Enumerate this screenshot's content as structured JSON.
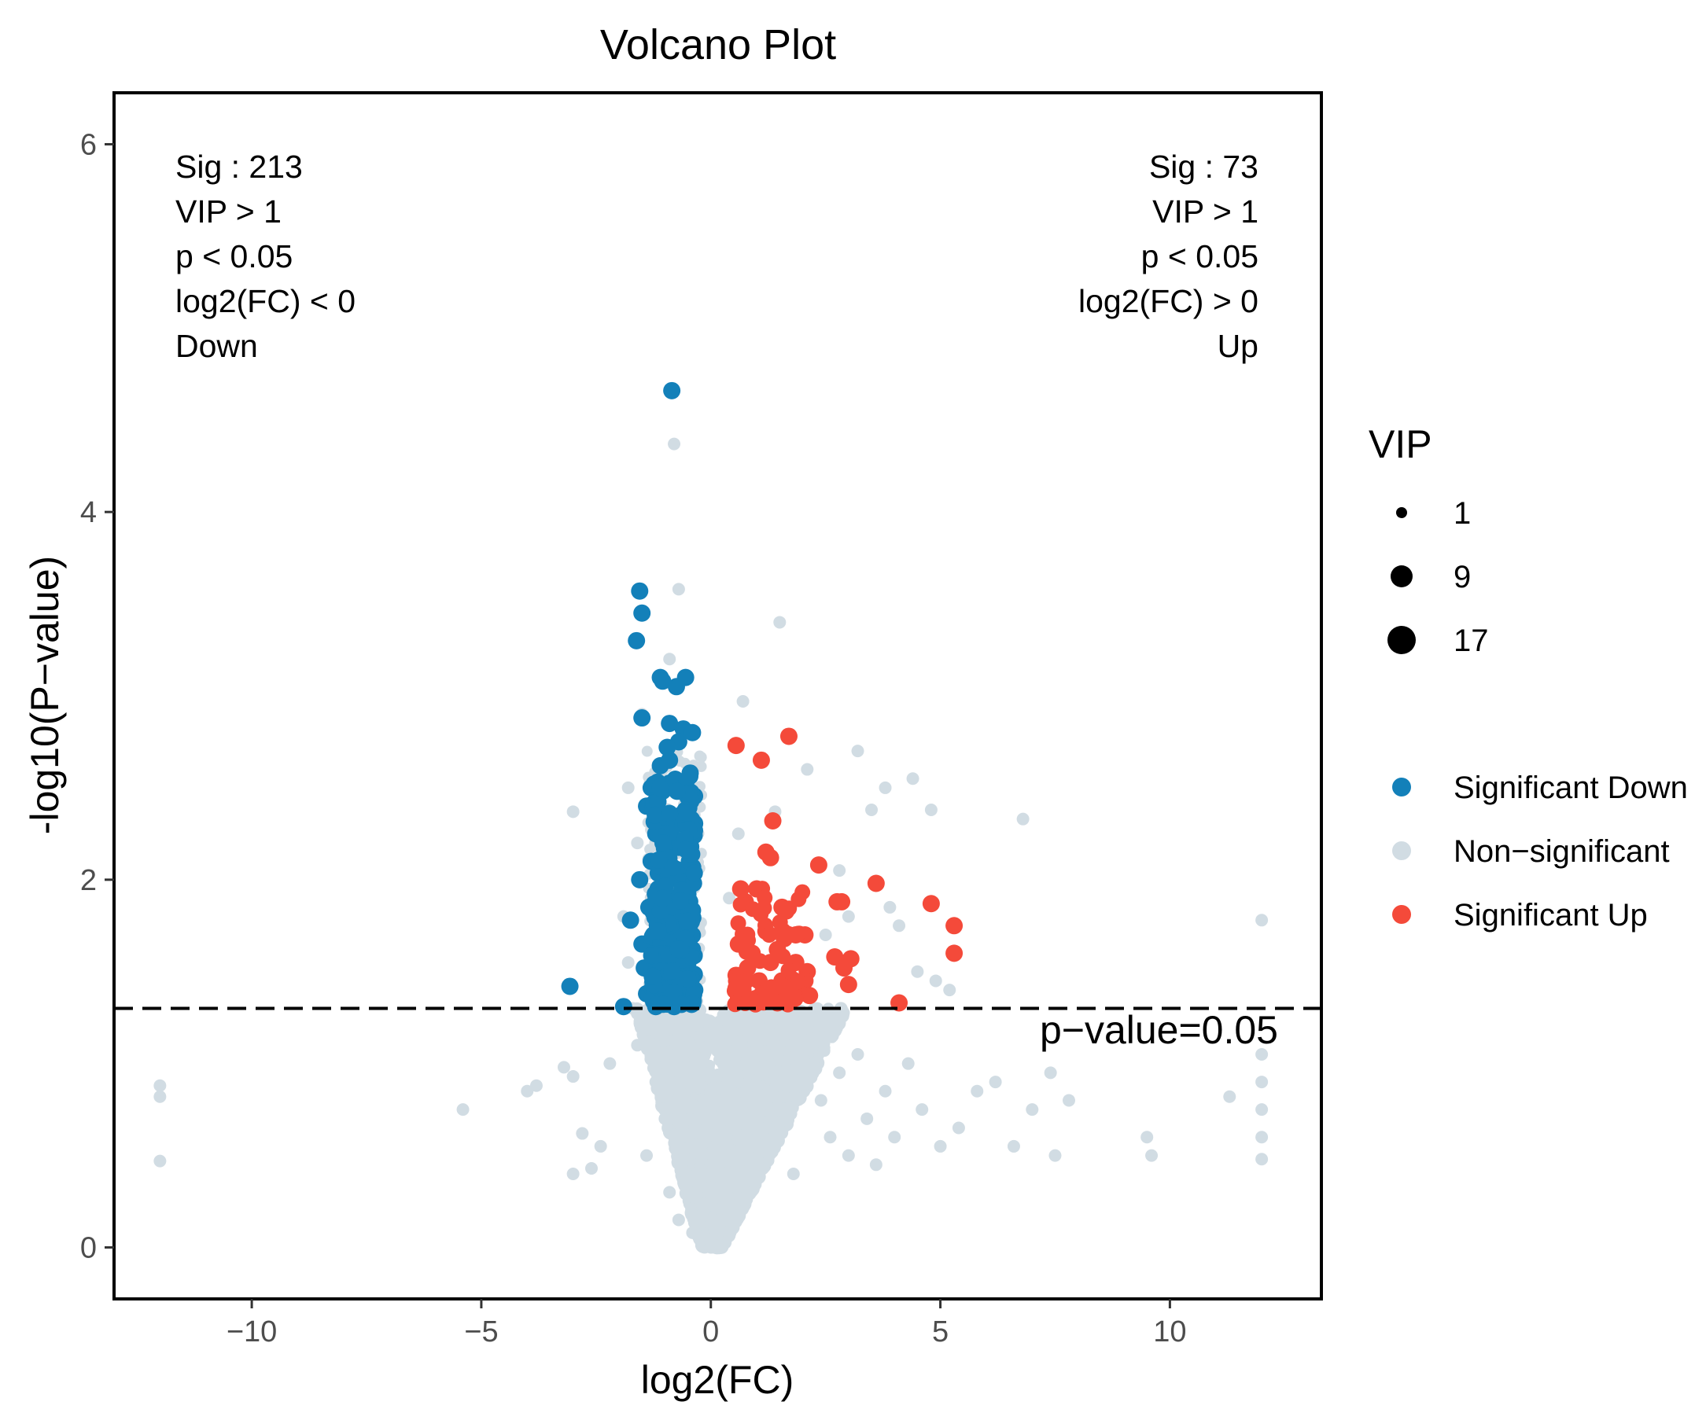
{
  "chart_data": {
    "type": "scatter",
    "title": "Volcano Plot",
    "xlabel": "log2(FC)",
    "ylabel": "-log10(P−value)",
    "xlim": [
      -13,
      13.3
    ],
    "ylim": [
      -0.28,
      6.28
    ],
    "x_ticks": [
      -10,
      -5,
      0,
      5,
      10
    ],
    "x_tick_labels": [
      "−10",
      "−5",
      "0",
      "5",
      "10"
    ],
    "y_ticks": [
      0,
      2,
      4,
      6
    ],
    "y_tick_labels": [
      "0",
      "2",
      "4",
      "6"
    ],
    "grid": false,
    "threshold": {
      "y": 1.3,
      "label": "p−value=0.05",
      "style": "dashed"
    },
    "annotations": {
      "down": [
        "Sig : 213",
        "VIP > 1",
        "p < 0.05",
        "log2(FC) < 0",
        "Down"
      ],
      "up": [
        "Sig : 73",
        "VIP > 1",
        "p < 0.05",
        "log2(FC) > 0",
        "Up"
      ]
    },
    "size_legend": {
      "title": "VIP",
      "entries": [
        {
          "label": "1",
          "value": 1
        },
        {
          "label": "9",
          "value": 9
        },
        {
          "label": "17",
          "value": 17
        }
      ]
    },
    "color_legend": [
      {
        "name": "Significant Down",
        "color": "#1380B9"
      },
      {
        "name": "Non−significant",
        "color": "#D1DCE3"
      },
      {
        "name": "Significant Up",
        "color": "#F44A3A"
      }
    ],
    "significant_counts": {
      "down": 213,
      "up": 73
    },
    "series": [
      {
        "name": "Non−significant",
        "color": "#D1DCE3",
        "points": [
          [
            -12.0,
            0.88
          ],
          [
            -12.0,
            0.82
          ],
          [
            -12.0,
            0.47
          ],
          [
            -5.4,
            0.75
          ],
          [
            -4.0,
            0.85
          ],
          [
            -3.8,
            0.88
          ],
          [
            -3.2,
            0.98
          ],
          [
            -3.0,
            0.93
          ],
          [
            -2.8,
            0.62
          ],
          [
            -2.6,
            0.43
          ],
          [
            -3.0,
            0.4
          ],
          [
            -2.4,
            0.55
          ],
          [
            -2.2,
            1.0
          ],
          [
            -3.0,
            2.37
          ],
          [
            -1.9,
            1.8
          ],
          [
            -1.8,
            1.55
          ],
          [
            -1.7,
            1.3
          ],
          [
            -1.6,
            1.1
          ],
          [
            -1.4,
            0.5
          ],
          [
            -1.2,
            0.9
          ],
          [
            -1.0,
            0.7
          ],
          [
            -0.9,
            0.3
          ],
          [
            -0.7,
            0.15
          ],
          [
            -0.5,
            0.6
          ],
          [
            -0.4,
            0.08
          ],
          [
            -0.3,
            0.4
          ],
          [
            -0.2,
            1.0
          ],
          [
            -0.1,
            0.05
          ],
          [
            0.0,
            0.0
          ],
          [
            0.2,
            0.15
          ],
          [
            0.4,
            0.5
          ],
          [
            0.6,
            0.9
          ],
          [
            0.8,
            0.3
          ],
          [
            1.0,
            1.1
          ],
          [
            1.2,
            0.65
          ],
          [
            1.5,
            0.95
          ],
          [
            1.8,
            0.4
          ],
          [
            2.1,
            1.2
          ],
          [
            2.4,
            0.8
          ],
          [
            2.6,
            0.6
          ],
          [
            2.8,
            0.95
          ],
          [
            3.0,
            0.5
          ],
          [
            3.2,
            1.05
          ],
          [
            3.4,
            0.7
          ],
          [
            3.6,
            0.45
          ],
          [
            3.8,
            0.85
          ],
          [
            4.0,
            0.6
          ],
          [
            4.3,
            1.0
          ],
          [
            4.6,
            0.75
          ],
          [
            5.0,
            0.55
          ],
          [
            5.4,
            0.65
          ],
          [
            5.8,
            0.85
          ],
          [
            6.2,
            0.9
          ],
          [
            6.6,
            0.55
          ],
          [
            7.0,
            0.75
          ],
          [
            7.4,
            0.95
          ],
          [
            7.8,
            0.8
          ],
          [
            7.5,
            0.5
          ],
          [
            9.5,
            0.6
          ],
          [
            9.6,
            0.5
          ],
          [
            11.3,
            0.82
          ],
          [
            12.0,
            1.05
          ],
          [
            12.0,
            0.9
          ],
          [
            12.0,
            0.75
          ],
          [
            12.0,
            0.6
          ],
          [
            12.0,
            0.48
          ],
          [
            12.0,
            1.78
          ],
          [
            -0.8,
            4.37
          ],
          [
            -0.7,
            3.58
          ],
          [
            1.5,
            3.4
          ],
          [
            0.7,
            2.97
          ],
          [
            3.2,
            2.7
          ],
          [
            2.1,
            2.6
          ],
          [
            3.8,
            2.5
          ],
          [
            4.4,
            2.55
          ],
          [
            6.8,
            2.33
          ],
          [
            3.5,
            2.38
          ],
          [
            4.8,
            2.38
          ],
          [
            1.4,
            2.37
          ],
          [
            2.8,
            2.05
          ],
          [
            3.9,
            1.85
          ],
          [
            4.1,
            1.75
          ],
          [
            4.5,
            1.5
          ],
          [
            4.9,
            1.45
          ],
          [
            5.2,
            1.4
          ],
          [
            3.0,
            1.8
          ],
          [
            2.5,
            1.7
          ],
          [
            0.6,
            2.25
          ],
          [
            -1.8,
            2.5
          ],
          [
            -1.6,
            2.2
          ],
          [
            -1.5,
            2.9
          ],
          [
            -0.9,
            3.2
          ],
          [
            -1.2,
            1.6
          ],
          [
            0.4,
            1.9
          ]
        ]
      },
      {
        "name": "Significant Down",
        "color": "#1380B9",
        "points": [
          [
            -0.85,
            4.66
          ],
          [
            -1.55,
            3.57
          ],
          [
            -1.5,
            3.45
          ],
          [
            -1.62,
            3.3
          ],
          [
            -1.1,
            3.1
          ],
          [
            -1.05,
            3.08
          ],
          [
            -0.55,
            3.1
          ],
          [
            -0.75,
            3.05
          ],
          [
            -1.5,
            2.88
          ],
          [
            -0.9,
            2.85
          ],
          [
            -0.6,
            2.82
          ],
          [
            -0.4,
            2.8
          ],
          [
            -0.7,
            2.75
          ],
          [
            -1.1,
            2.62
          ],
          [
            -0.9,
            2.65
          ],
          [
            -1.3,
            2.5
          ],
          [
            -0.8,
            2.5
          ],
          [
            -0.5,
            2.45
          ],
          [
            -1.4,
            2.4
          ],
          [
            -0.95,
            2.35
          ],
          [
            -0.6,
            2.3
          ],
          [
            -1.2,
            2.25
          ],
          [
            -0.8,
            2.2
          ],
          [
            -0.45,
            2.15
          ],
          [
            -1.3,
            2.1
          ],
          [
            -1.0,
            2.05
          ],
          [
            -1.55,
            2.0
          ],
          [
            -0.7,
            2.0
          ],
          [
            -1.15,
            1.95
          ],
          [
            -0.5,
            1.92
          ],
          [
            -0.9,
            1.88
          ],
          [
            -1.35,
            1.85
          ],
          [
            -1.75,
            1.78
          ],
          [
            -1.0,
            1.78
          ],
          [
            -0.6,
            1.75
          ],
          [
            -1.25,
            1.7
          ],
          [
            -0.85,
            1.68
          ],
          [
            -1.5,
            1.65
          ],
          [
            -0.4,
            1.62
          ],
          [
            -1.1,
            1.58
          ],
          [
            -0.7,
            1.55
          ],
          [
            -1.45,
            1.52
          ],
          [
            -1.0,
            1.5
          ],
          [
            -0.55,
            1.47
          ],
          [
            -1.25,
            1.45
          ],
          [
            -0.8,
            1.42
          ],
          [
            -3.07,
            1.42
          ],
          [
            -1.4,
            1.38
          ],
          [
            -1.0,
            1.36
          ],
          [
            -0.6,
            1.34
          ],
          [
            -1.9,
            1.31
          ],
          [
            -0.8,
            1.31
          ],
          [
            -1.2,
            1.31
          ],
          [
            -0.35,
            1.4
          ],
          [
            -0.95,
            2.72
          ],
          [
            -0.45,
            2.58
          ],
          [
            -1.15,
            1.8
          ],
          [
            -0.75,
            1.62
          ]
        ]
      },
      {
        "name": "Significant Up",
        "color": "#F44A3A",
        "points": [
          [
            1.7,
            2.78
          ],
          [
            0.55,
            2.73
          ],
          [
            1.1,
            2.65
          ],
          [
            1.35,
            2.32
          ],
          [
            1.2,
            2.15
          ],
          [
            1.3,
            2.12
          ],
          [
            2.35,
            2.08
          ],
          [
            3.6,
            1.98
          ],
          [
            0.65,
            1.95
          ],
          [
            1.0,
            1.95
          ],
          [
            0.75,
            1.88
          ],
          [
            1.55,
            1.85
          ],
          [
            2.75,
            1.88
          ],
          [
            2.85,
            1.88
          ],
          [
            4.8,
            1.87
          ],
          [
            5.3,
            1.75
          ],
          [
            1.2,
            1.72
          ],
          [
            1.85,
            1.7
          ],
          [
            2.05,
            1.7
          ],
          [
            0.6,
            1.65
          ],
          [
            1.45,
            1.62
          ],
          [
            2.7,
            1.58
          ],
          [
            5.3,
            1.6
          ],
          [
            3.05,
            1.57
          ],
          [
            2.9,
            1.52
          ],
          [
            0.8,
            1.52
          ],
          [
            1.3,
            1.55
          ],
          [
            1.85,
            1.55
          ],
          [
            2.1,
            1.5
          ],
          [
            0.55,
            1.48
          ],
          [
            1.05,
            1.45
          ],
          [
            1.55,
            1.45
          ],
          [
            2.05,
            1.45
          ],
          [
            3.0,
            1.43
          ],
          [
            0.7,
            1.4
          ],
          [
            1.25,
            1.38
          ],
          [
            1.75,
            1.38
          ],
          [
            2.15,
            1.37
          ],
          [
            0.6,
            1.35
          ],
          [
            1.0,
            1.33
          ],
          [
            1.45,
            1.33
          ],
          [
            4.1,
            1.33
          ],
          [
            0.9,
            1.6
          ],
          [
            1.6,
            1.68
          ]
        ]
      }
    ],
    "dense_regions": [
      {
        "series": "Non−significant",
        "x_center": 0,
        "y_max": 1.3,
        "description": "dense cloud of non-significant points"
      }
    ]
  }
}
